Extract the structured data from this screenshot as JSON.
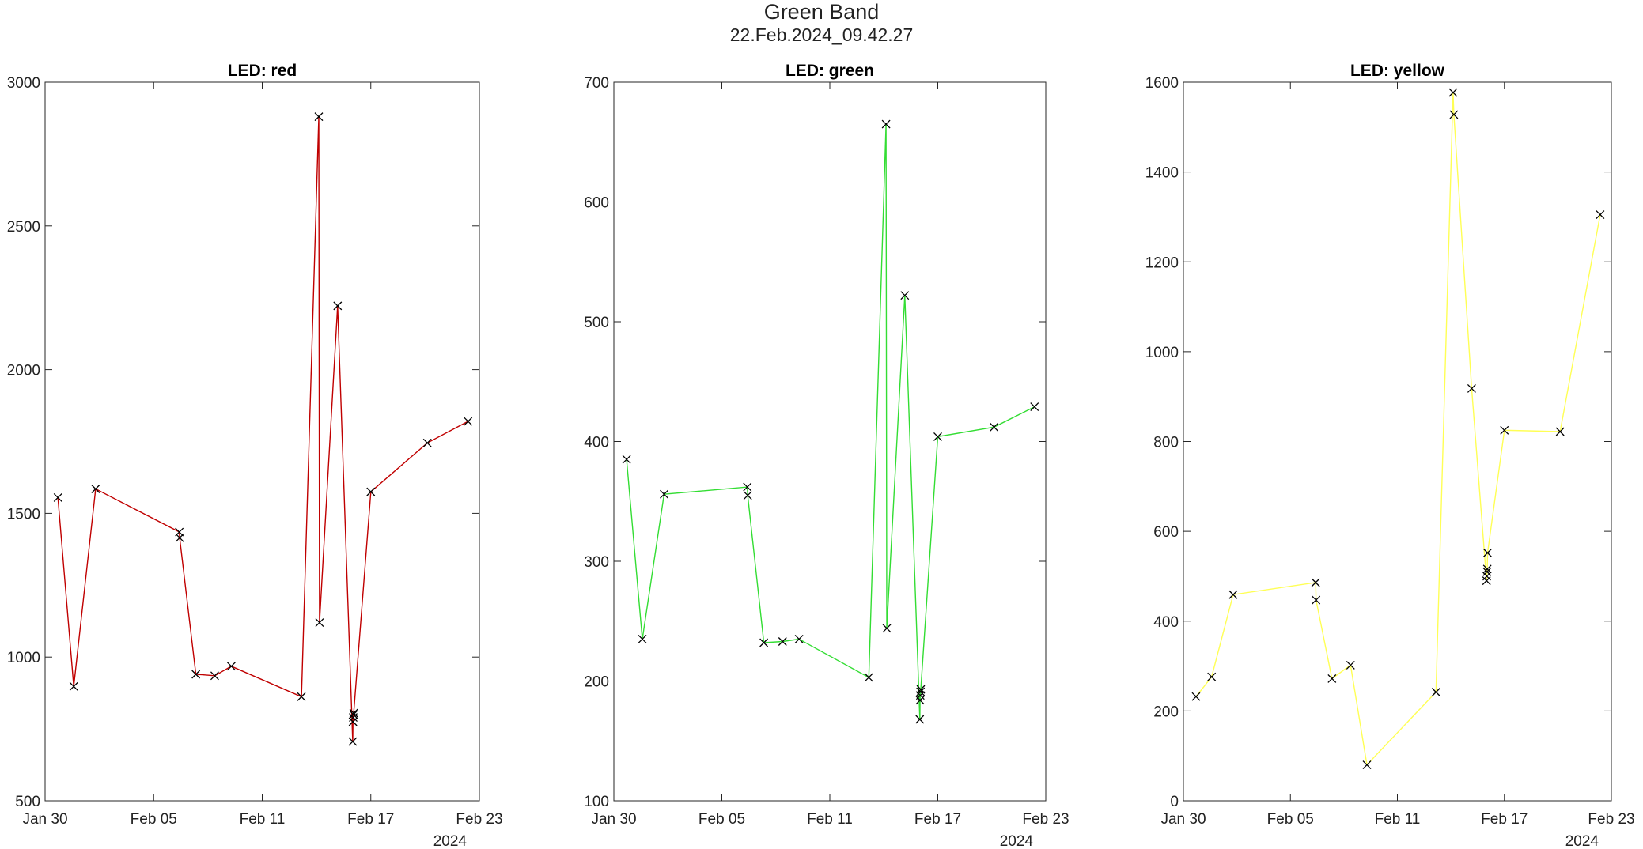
{
  "figure": {
    "title": "Green Band",
    "subtitle": "22.Feb.2024_09.42.27"
  },
  "chart_data": [
    {
      "type": "line",
      "title": "LED: red",
      "line_color": "#c00000",
      "marker": "x",
      "x_tick_labels": [
        "Jan 30",
        "Feb 05",
        "Feb 11",
        "Feb 17",
        "Feb 23"
      ],
      "x_year_label": "2024",
      "xlim": [
        "2024-01-30",
        "2024-02-23"
      ],
      "ylim": [
        500,
        3000
      ],
      "y_ticks": [
        500,
        1000,
        1500,
        2000,
        2500,
        3000
      ],
      "series": [
        {
          "x": [
            "2024-01-30T17:00",
            "2024-01-31T14:00",
            "2024-02-01T19:00",
            "2024-02-06T10:00",
            "2024-02-06T10:30",
            "2024-02-07T08:00",
            "2024-02-08T09:00",
            "2024-02-09T07:00",
            "2024-02-13T04:00",
            "2024-02-14T03:00",
            "2024-02-14T04:00",
            "2024-02-15T04:00",
            "2024-02-16T00:00",
            "2024-02-16T00:20",
            "2024-02-16T00:40",
            "2024-02-16T01:00",
            "2024-02-16T01:20",
            "2024-02-17T00:00",
            "2024-02-20T03:00",
            "2024-02-22T09:00"
          ],
          "y": [
            1555,
            898,
            1585,
            1435,
            1415,
            940,
            935,
            968,
            862,
            2880,
            1120,
            2222,
            706,
            775,
            790,
            800,
            805,
            1575,
            1745,
            1820
          ]
        }
      ]
    },
    {
      "type": "line",
      "title": "LED: green",
      "line_color": "#33dd33",
      "marker": "x",
      "x_tick_labels": [
        "Jan 30",
        "Feb 05",
        "Feb 11",
        "Feb 17",
        "Feb 23"
      ],
      "x_year_label": "2024",
      "xlim": [
        "2024-01-30",
        "2024-02-23"
      ],
      "ylim": [
        100,
        700
      ],
      "y_ticks": [
        100,
        200,
        300,
        400,
        500,
        600,
        700
      ],
      "series": [
        {
          "x": [
            "2024-01-30T17:00",
            "2024-01-31T14:00",
            "2024-02-01T19:00",
            "2024-02-06T10:00",
            "2024-02-06T10:30",
            "2024-02-07T08:00",
            "2024-02-08T09:00",
            "2024-02-09T07:00",
            "2024-02-13T04:00",
            "2024-02-14T03:00",
            "2024-02-14T04:00",
            "2024-02-15T04:00",
            "2024-02-16T00:00",
            "2024-02-16T00:20",
            "2024-02-16T00:40",
            "2024-02-16T01:00",
            "2024-02-16T01:20",
            "2024-02-17T00:00",
            "2024-02-20T03:00",
            "2024-02-22T09:00"
          ],
          "y": [
            385,
            235,
            356,
            362,
            355,
            232,
            233,
            235,
            203,
            665,
            244,
            522,
            168,
            184,
            188,
            191,
            193,
            404,
            412,
            429
          ]
        }
      ]
    },
    {
      "type": "line",
      "title": "LED: yellow",
      "line_color": "#ffff55",
      "marker": "x",
      "x_tick_labels": [
        "Jan 30",
        "Feb 05",
        "Feb 11",
        "Feb 17",
        "Feb 23"
      ],
      "x_year_label": "2024",
      "xlim": [
        "2024-01-30",
        "2024-02-23"
      ],
      "ylim": [
        0,
        1600
      ],
      "y_ticks": [
        0,
        200,
        400,
        600,
        800,
        1000,
        1200,
        1400,
        1600
      ],
      "series": [
        {
          "x": [
            "2024-01-30T17:00",
            "2024-01-31T14:00",
            "2024-02-01T19:00",
            "2024-02-06T10:00",
            "2024-02-06T10:30",
            "2024-02-07T08:00",
            "2024-02-08T09:00",
            "2024-02-09T07:00",
            "2024-02-13T04:00",
            "2024-02-14T03:00",
            "2024-02-14T04:00",
            "2024-02-15T04:00",
            "2024-02-16T00:00",
            "2024-02-16T00:20",
            "2024-02-16T00:40",
            "2024-02-16T01:00",
            "2024-02-16T01:20",
            "2024-02-17T00:00",
            "2024-02-20T03:00",
            "2024-02-22T09:00"
          ],
          "y": [
            232,
            276,
            459,
            486,
            447,
            272,
            302,
            80,
            242,
            1577,
            1528,
            918,
            490,
            500,
            510,
            516,
            552,
            825,
            822,
            1305
          ]
        }
      ]
    }
  ]
}
